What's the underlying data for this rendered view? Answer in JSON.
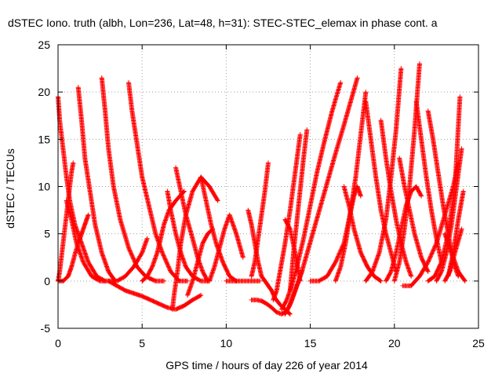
{
  "chart_data": {
    "type": "scatter",
    "title": "dSTEC Iono. truth (albh, Lon=236, Lat=48, h=31): STEC-STEC_elemax in phase cont. a",
    "xlabel": "GPS time / hours of day 226 of year 2014",
    "ylabel": "dSTEC  / TECUs",
    "xlim": [
      0,
      25
    ],
    "ylim": [
      -5,
      25
    ],
    "x_ticks": [
      "0",
      "5",
      "10",
      "15",
      "20",
      "25"
    ],
    "y_ticks": [
      "-5",
      "0",
      "5",
      "10",
      "15",
      "20",
      "25"
    ],
    "grid": true,
    "marker": "+",
    "color": "#ff0000",
    "series": [
      {
        "segments": [
          {
            "x": [
              0.0,
              0.1,
              0.3,
              0.5,
              0.7,
              1.0,
              1.4,
              1.8,
              2.3,
              2.8
            ],
            "y": [
              19.5,
              17.0,
              14.0,
              11.0,
              8.5,
              6.0,
              4.0,
              2.0,
              0.5,
              0.0
            ]
          },
          {
            "x": [
              0.0,
              0.1,
              0.2,
              0.3,
              0.4,
              0.5,
              0.6,
              0.7,
              0.8,
              0.9
            ],
            "y": [
              0.0,
              1.0,
              2.5,
              4.0,
              5.5,
              7.0,
              8.5,
              10.0,
              11.5,
              12.5
            ]
          }
        ]
      },
      {
        "segments": [
          {
            "x": [
              0.0,
              0.3,
              0.6,
              0.8,
              1.0,
              1.2,
              1.4,
              1.6,
              1.8
            ],
            "y": [
              0.0,
              0.0,
              0.5,
              1.5,
              2.8,
              4.0,
              5.0,
              6.0,
              7.0
            ]
          },
          {
            "x": [
              1.2,
              1.4,
              1.6,
              1.9,
              2.2,
              2.6,
              3.0,
              3.4
            ],
            "y": [
              20.5,
              17.0,
              13.0,
              9.5,
              6.0,
              3.0,
              1.0,
              0.0
            ]
          }
        ]
      },
      {
        "segments": [
          {
            "x": [
              0.5,
              0.8,
              1.1,
              1.5,
              2.0,
              2.5,
              3.0,
              3.5,
              4.0,
              4.5,
              5.0,
              5.3
            ],
            "y": [
              8.5,
              6.5,
              4.0,
              2.0,
              0.5,
              0.0,
              0.0,
              0.0,
              0.5,
              1.5,
              3.0,
              4.5
            ]
          },
          {
            "x": [
              2.6,
              2.8,
              3.0,
              3.3,
              3.7,
              4.2,
              4.7,
              5.2,
              5.8,
              6.3
            ],
            "y": [
              21.5,
              18.0,
              14.0,
              10.0,
              6.5,
              3.5,
              1.5,
              0.5,
              0.0,
              0.0
            ]
          }
        ]
      },
      {
        "segments": [
          {
            "x": [
              4.2,
              4.4,
              4.7,
              5.0,
              5.4,
              5.8,
              6.2,
              6.7,
              7.2,
              7.7
            ],
            "y": [
              21.0,
              18.0,
              14.5,
              11.0,
              8.0,
              5.0,
              3.0,
              1.0,
              0.0,
              0.0
            ]
          },
          {
            "x": [
              3.0,
              3.5,
              4.0,
              4.5,
              5.0,
              5.5,
              6.0,
              6.5,
              7.0,
              7.5,
              8.0,
              8.5
            ],
            "y": [
              0.0,
              -0.5,
              -1.0,
              -1.3,
              -1.6,
              -2.0,
              -2.4,
              -2.8,
              -3.0,
              -2.6,
              -2.0,
              -1.5
            ]
          }
        ]
      },
      {
        "segments": [
          {
            "x": [
              5.0,
              5.3,
              5.6,
              5.9,
              6.1,
              6.3,
              6.6,
              7.0,
              7.5
            ],
            "y": [
              0.0,
              0.5,
              1.5,
              3.0,
              4.5,
              6.0,
              7.5,
              8.5,
              9.5
            ]
          },
          {
            "x": [
              6.5,
              6.7,
              7.0,
              7.3,
              7.6,
              8.0,
              8.5,
              9.0
            ],
            "y": [
              9.5,
              7.5,
              5.0,
              3.0,
              1.5,
              0.5,
              0.0,
              0.0
            ]
          },
          {
            "x": [
              6.8,
              6.9,
              7.1,
              7.3,
              7.6,
              8.0,
              8.5,
              9.0,
              9.5
            ],
            "y": [
              -3.0,
              -1.5,
              1.0,
              4.0,
              7.0,
              9.5,
              11.0,
              10.0,
              8.5
            ]
          }
        ]
      },
      {
        "segments": [
          {
            "x": [
              7.0,
              7.3,
              7.6,
              8.0,
              8.3,
              8.6,
              8.9
            ],
            "y": [
              12.0,
              9.5,
              7.0,
              4.5,
              2.5,
              1.0,
              0.0
            ]
          },
          {
            "x": [
              7.7,
              8.0,
              8.3,
              8.6,
              8.9,
              9.2
            ],
            "y": [
              -1.5,
              0.0,
              2.0,
              4.0,
              5.0,
              5.5
            ]
          },
          {
            "x": [
              8.5,
              8.8,
              9.1,
              9.4,
              9.8,
              10.2,
              10.6
            ],
            "y": [
              11.0,
              8.5,
              6.0,
              4.0,
              2.0,
              0.5,
              0.0
            ]
          },
          {
            "x": [
              9.0,
              9.3,
              9.6,
              9.9,
              10.2,
              10.6,
              11.0
            ],
            "y": [
              0.0,
              1.5,
              3.5,
              5.5,
              7.0,
              5.0,
              2.5
            ]
          },
          {
            "x": [
              10.0,
              10.5,
              11.0,
              11.5,
              12.0
            ],
            "y": [
              0.0,
              0.0,
              0.0,
              0.0,
              0.0
            ]
          }
        ]
      },
      {
        "segments": [
          {
            "x": [
              11.5,
              11.8,
              12.1,
              12.4,
              12.7,
              13.0,
              13.3,
              13.6,
              13.9,
              14.2,
              14.5
            ],
            "y": [
              -2.0,
              -2.0,
              -2.1,
              -2.4,
              -2.8,
              -3.3,
              -3.5,
              -3.2,
              -2.0,
              -0.5,
              1.0
            ]
          },
          {
            "x": [
              11.3,
              11.5,
              11.7,
              11.9,
              12.1,
              12.3,
              12.5,
              12.7,
              12.9,
              13.2,
              13.5,
              13.8
            ],
            "y": [
              7.5,
              6.0,
              4.0,
              2.0,
              0.5,
              0.0,
              -0.5,
              -1.0,
              -1.8,
              -2.5,
              -3.0,
              -3.5
            ]
          },
          {
            "x": [
              11.5,
              11.7,
              11.9,
              12.1,
              12.3,
              12.5
            ],
            "y": [
              0.5,
              2.0,
              4.5,
              7.0,
              9.5,
              12.5
            ]
          },
          {
            "x": [
              12.8,
              13.0,
              13.2,
              13.5,
              13.8,
              14.1,
              14.4
            ],
            "y": [
              -2.0,
              -1.0,
              1.0,
              4.0,
              7.5,
              11.5,
              15.5
            ]
          },
          {
            "x": [
              13.3,
              13.6,
              13.9,
              14.2,
              14.6,
              15.0,
              15.4,
              15.8,
              16.3,
              16.8
            ],
            "y": [
              -3.0,
              -2.0,
              -0.5,
              1.5,
              4.5,
              8.0,
              11.5,
              14.5,
              18.0,
              21.0
            ]
          },
          {
            "x": [
              13.5,
              13.8,
              14.1,
              14.5,
              14.9,
              15.3,
              15.7,
              16.1,
              16.5,
              17.0,
              17.4,
              17.8
            ],
            "y": [
              -3.5,
              -2.5,
              -1.0,
              1.0,
              3.5,
              6.0,
              8.5,
              11.0,
              13.5,
              16.5,
              19.0,
              21.5
            ]
          },
          {
            "x": [
              13.5,
              13.8,
              14.1,
              14.4
            ],
            "y": [
              6.5,
              5.5,
              3.0,
              0.0
            ]
          },
          {
            "x": [
              13.8,
              14.0,
              14.3,
              14.6,
              14.8
            ],
            "y": [
              -1.0,
              3.0,
              8.0,
              13.0,
              16.0
            ]
          }
        ]
      },
      {
        "segments": [
          {
            "x": [
              15.0,
              15.5,
              16.0,
              16.5,
              17.0,
              17.3,
              17.6,
              17.8,
              18.0
            ],
            "y": [
              0.0,
              0.0,
              0.5,
              2.0,
              4.0,
              6.5,
              9.0,
              10.0,
              9.0
            ]
          },
          {
            "x": [
              17.0,
              17.3,
              17.6,
              18.0,
              18.4,
              18.8,
              19.2
            ],
            "y": [
              10.0,
              8.0,
              5.5,
              3.0,
              1.5,
              0.5,
              0.0
            ]
          },
          {
            "x": [
              16.5,
              16.8,
              17.1,
              17.4,
              17.7,
              18.0,
              18.3
            ],
            "y": [
              0.0,
              1.5,
              4.0,
              7.5,
              11.0,
              15.5,
              20.0
            ]
          },
          {
            "x": [
              18.3,
              18.6,
              18.9,
              19.2,
              19.5,
              19.8,
              20.1
            ],
            "y": [
              19.0,
              15.0,
              11.0,
              7.5,
              5.0,
              3.0,
              1.0
            ]
          },
          {
            "x": [
              19.2,
              19.5,
              19.8,
              20.1,
              20.4,
              20.7,
              21.0
            ],
            "y": [
              17.0,
              13.0,
              9.5,
              6.5,
              4.0,
              2.0,
              0.5
            ]
          }
        ]
      },
      {
        "segments": [
          {
            "x": [
              18.3,
              18.7,
              19.1,
              19.5,
              19.8,
              20.1,
              20.4
            ],
            "y": [
              0.0,
              1.0,
              3.0,
              6.5,
              11.0,
              16.0,
              22.5
            ]
          },
          {
            "x": [
              19.5,
              19.8,
              20.1,
              20.4,
              20.7,
              21.0,
              21.3,
              21.6
            ],
            "y": [
              0.0,
              1.0,
              3.0,
              5.5,
              8.0,
              9.5,
              10.0,
              9.0
            ]
          },
          {
            "x": [
              20.0,
              20.3,
              20.6,
              20.9,
              21.2,
              21.5
            ],
            "y": [
              0.0,
              2.0,
              5.5,
              10.0,
              16.0,
              23.0
            ]
          },
          {
            "x": [
              20.3,
              20.6,
              20.9,
              21.2,
              21.6,
              22.0
            ],
            "y": [
              13.0,
              10.0,
              7.5,
              5.0,
              2.5,
              1.0
            ]
          },
          {
            "x": [
              21.3,
              21.6,
              21.9,
              22.2,
              22.5,
              22.8
            ],
            "y": [
              19.0,
              15.0,
              11.0,
              7.5,
              4.5,
              2.0
            ]
          },
          {
            "x": [
              20.5,
              21.0,
              21.5,
              22.0,
              22.5,
              23.0,
              23.5,
              23.8
            ],
            "y": [
              -0.5,
              -0.5,
              0.5,
              2.0,
              4.0,
              7.0,
              10.0,
              12.5
            ]
          },
          {
            "x": [
              22.0,
              22.3,
              22.6,
              22.9,
              23.2,
              23.5,
              23.8
            ],
            "y": [
              18.0,
              15.0,
              11.5,
              8.0,
              5.0,
              2.0,
              0.5
            ]
          },
          {
            "x": [
              22.5,
              22.8,
              23.1,
              23.4,
              23.7,
              24.0
            ],
            "y": [
              0.0,
              1.0,
              3.0,
              6.0,
              10.0,
              14.0
            ]
          },
          {
            "x": [
              22.0,
              22.4,
              22.8,
              23.2,
              23.6,
              23.9
            ],
            "y": [
              0.0,
              0.5,
              2.0,
              5.0,
              10.0,
              19.5
            ]
          },
          {
            "x": [
              23.0,
              23.3,
              23.6,
              24.0
            ],
            "y": [
              0.0,
              1.0,
              3.0,
              5.5
            ]
          },
          {
            "x": [
              23.2,
              23.5,
              23.8,
              24.1
            ],
            "y": [
              0.5,
              3.0,
              6.5,
              9.5
            ]
          },
          {
            "x": [
              23.0,
              23.4,
              23.8,
              24.2
            ],
            "y": [
              5.0,
              3.0,
              1.0,
              0.0
            ]
          }
        ]
      }
    ]
  }
}
